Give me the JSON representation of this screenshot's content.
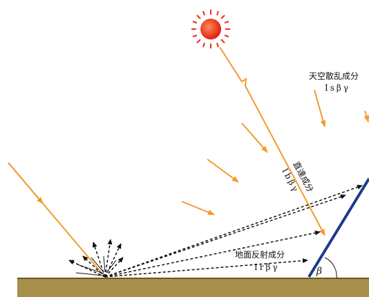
{
  "labels": {
    "sky_diffuse": "天空散乱成分",
    "sky_diffuse_symbol": "Isβγ",
    "direct": "直達成分",
    "direct_symbol": "Ibβγ",
    "ground_reflected": "地面反射成分",
    "ground_reflected_symbol": "Irβγ",
    "tilt_angle": "β"
  }
}
